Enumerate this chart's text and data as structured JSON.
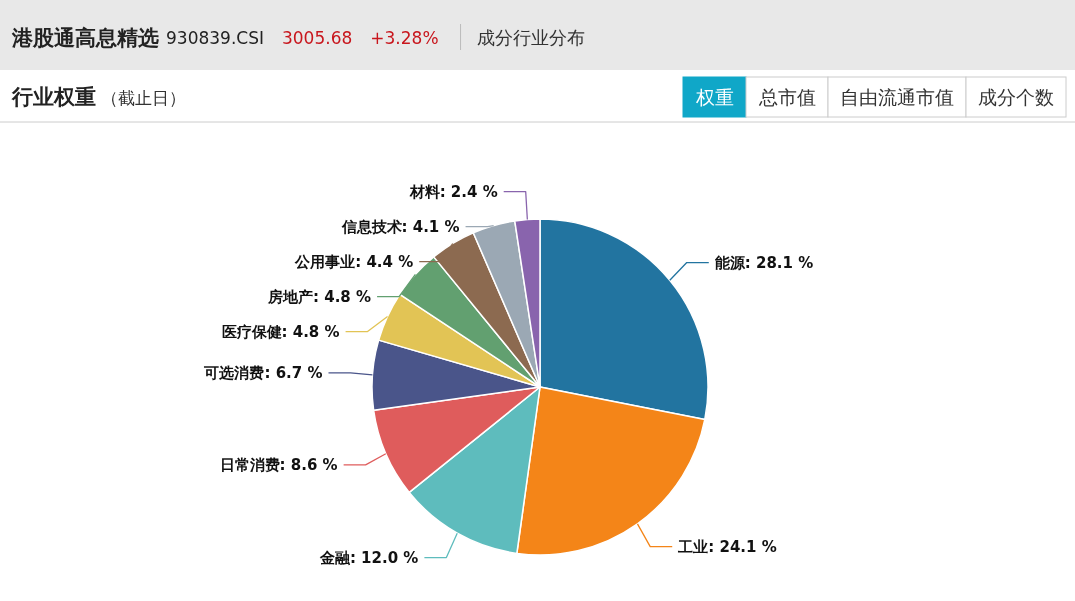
{
  "chart_data": {
    "type": "pie",
    "title": "港股通高息精选",
    "subtitle": "行业权重（截止日）",
    "annotations": [
      "930839.CSI",
      "3005.68",
      "+3.28%",
      "成分行业分布",
      "权重",
      "总市值",
      "自由流通市值",
      "成分个数"
    ],
    "categories": [
      "能源",
      "工业",
      "金融",
      "日常消费",
      "可选消费",
      "医疗保健",
      "房地产",
      "公用事业",
      "信息技术",
      "材料"
    ],
    "values": [
      28.1,
      24.1,
      12.0,
      8.6,
      6.7,
      4.8,
      4.8,
      4.4,
      4.1,
      2.4
    ],
    "value_labels": [
      "28.1 %",
      "24.1 %",
      "12.0 %",
      "8.6 %",
      "6.7 %",
      "4.8 %",
      "4.8 %",
      "4.4 %",
      "4.1 %",
      "2.4 %"
    ],
    "colors": [
      "#2274a0",
      "#f48518",
      "#5ebcbd",
      "#df5c5c",
      "#4a558a",
      "#e2c455",
      "#62a070",
      "#8c6a50",
      "#9ba8b4",
      "#8964ad"
    ]
  }
}
